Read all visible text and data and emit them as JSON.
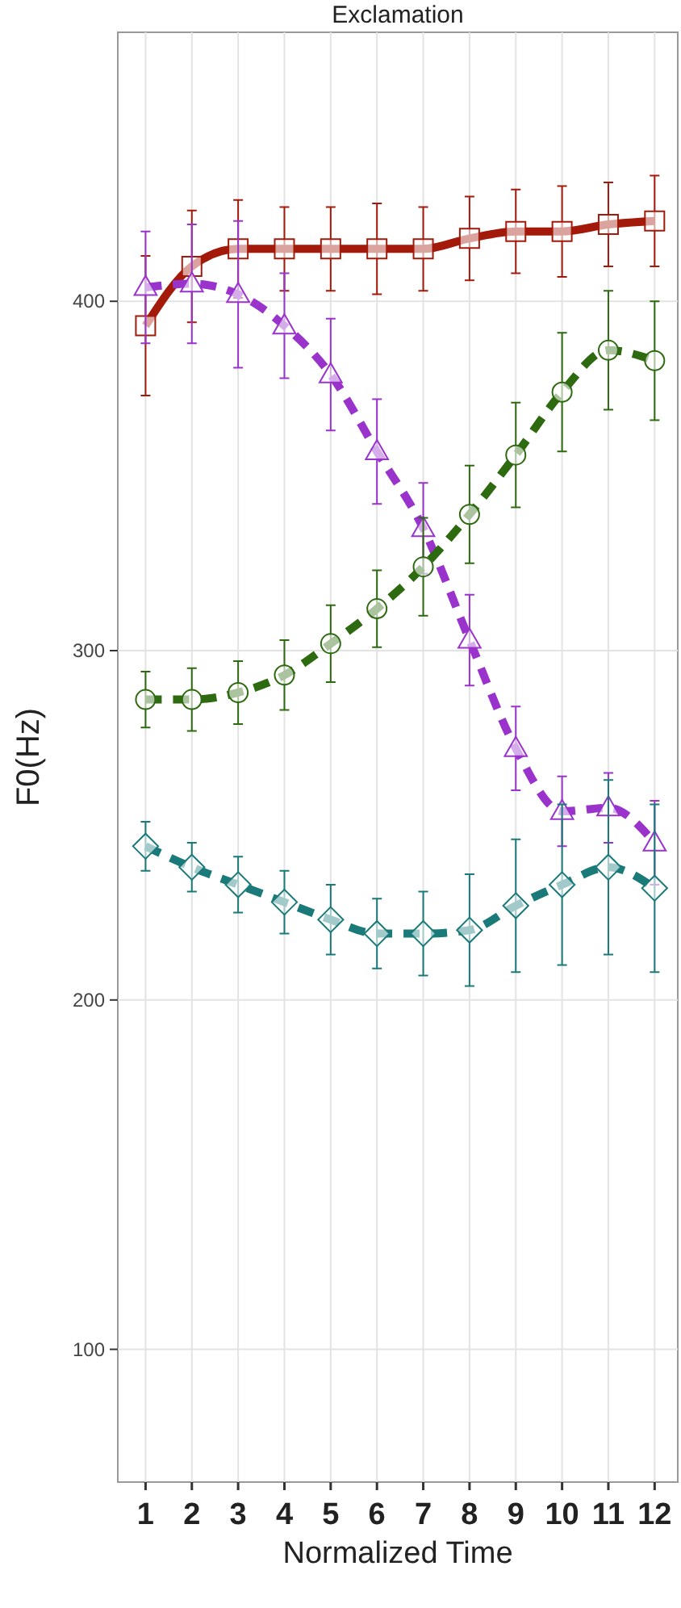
{
  "chart_data": {
    "type": "line",
    "title": "Exclamation",
    "xlabel": "Normalized Time",
    "ylabel": "F0(Hz)",
    "x": [
      1,
      2,
      3,
      4,
      5,
      6,
      7,
      8,
      9,
      10,
      11,
      12
    ],
    "xlim": [
      0.4,
      12.5
    ],
    "xticks": [
      1,
      2,
      3,
      4,
      5,
      6,
      7,
      8,
      9,
      10,
      11,
      12
    ],
    "ylim": [
      62,
      477
    ],
    "yticks": [
      100,
      200,
      300,
      400
    ],
    "grid": true,
    "series": [
      {
        "color": "#a31a0a",
        "marker": "square",
        "line_style": "solid",
        "values": [
          393,
          410,
          415,
          415,
          415,
          415,
          415,
          418,
          420,
          420,
          422,
          423
        ],
        "errors": [
          20,
          16,
          14,
          12,
          12,
          13,
          12,
          12,
          12,
          13,
          12,
          13
        ]
      },
      {
        "color": "#9933cc",
        "marker": "triangle",
        "line_style": "dashed",
        "values": [
          404,
          405,
          402,
          393,
          379,
          357,
          335,
          303,
          272,
          254,
          255,
          245
        ],
        "errors": [
          16,
          17,
          21,
          15,
          16,
          15,
          13,
          13,
          12,
          10,
          10,
          12
        ]
      },
      {
        "color": "#2d6a10",
        "marker": "circle",
        "line_style": "dashed",
        "values": [
          286,
          286,
          288,
          293,
          302,
          312,
          324,
          339,
          356,
          374,
          386,
          383
        ],
        "errors": [
          8,
          9,
          9,
          10,
          11,
          11,
          14,
          14,
          15,
          17,
          17,
          17
        ]
      },
      {
        "color": "#1a7a7a",
        "marker": "diamond",
        "line_style": "dashed",
        "values": [
          244,
          238,
          233,
          228,
          223,
          219,
          219,
          220,
          227,
          233,
          238,
          232
        ],
        "errors": [
          7,
          7,
          8,
          9,
          10,
          10,
          12,
          16,
          19,
          23,
          25,
          24
        ]
      }
    ]
  }
}
